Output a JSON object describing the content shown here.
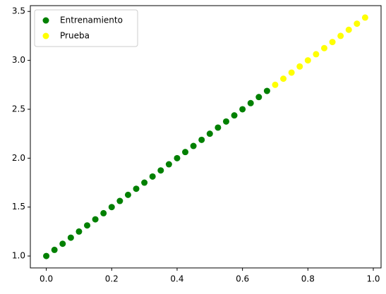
{
  "chart_data": {
    "type": "scatter",
    "series": [
      {
        "name": "Entrenamiento",
        "color": "green",
        "x": [
          0,
          0.025,
          0.05,
          0.075,
          0.1,
          0.125,
          0.15,
          0.175,
          0.2,
          0.225,
          0.25,
          0.275,
          0.3,
          0.325,
          0.35,
          0.375,
          0.4,
          0.425,
          0.45,
          0.475,
          0.5,
          0.525,
          0.55,
          0.575,
          0.6,
          0.625,
          0.65,
          0.675
        ],
        "values": [
          1,
          1.0625,
          1.125,
          1.1875,
          1.25,
          1.3125,
          1.375,
          1.4375,
          1.5,
          1.5625,
          1.625,
          1.6875,
          1.75,
          1.8125,
          1.875,
          1.9375,
          2,
          2.0625,
          2.125,
          2.1875,
          2.25,
          2.3125,
          2.375,
          2.4375,
          2.5,
          2.5625,
          2.625,
          2.6875
        ]
      },
      {
        "name": "Prueba",
        "color": "yellow",
        "x": [
          0.7,
          0.725,
          0.75,
          0.775,
          0.8,
          0.825,
          0.85,
          0.875,
          0.9,
          0.925,
          0.95,
          0.975
        ],
        "values": [
          2.75,
          2.8125,
          2.875,
          2.9375,
          3,
          3.0625,
          3.125,
          3.1875,
          3.25,
          3.3125,
          3.375,
          3.4375
        ]
      }
    ],
    "xlim": [
      -0.04875,
      1.02375
    ],
    "ylim": [
      0.878125,
      3.559375
    ],
    "xticks": [
      {
        "value": 0,
        "label": "0.0"
      },
      0.2,
      0.4,
      0.6,
      0.8,
      {
        "value": 1,
        "label": "1.0"
      }
    ],
    "yticks": [
      {
        "value": 1,
        "label": "1.0"
      },
      1.5,
      {
        "value": 2,
        "label": "2.0"
      },
      2.5,
      {
        "value": 3,
        "label": "3.0"
      },
      3.5
    ],
    "legend": "upper left",
    "grid": false
  }
}
